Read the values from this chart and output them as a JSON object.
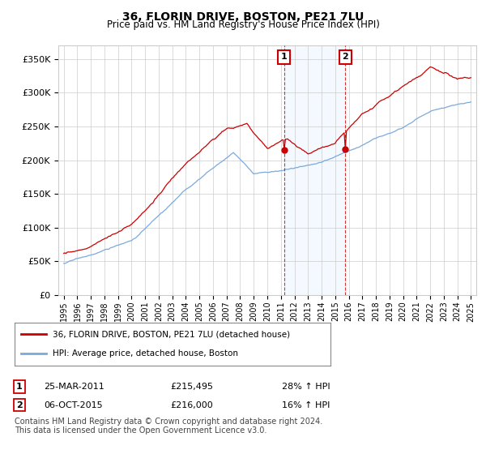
{
  "title": "36, FLORIN DRIVE, BOSTON, PE21 7LU",
  "subtitle": "Price paid vs. HM Land Registry's House Price Index (HPI)",
  "legend_label1": "36, FLORIN DRIVE, BOSTON, PE21 7LU (detached house)",
  "legend_label2": "HPI: Average price, detached house, Boston",
  "annotation1_date": "25-MAR-2011",
  "annotation1_price": "£215,495",
  "annotation1_hpi": "28% ↑ HPI",
  "annotation1_year": 2011.23,
  "annotation1_value": 215495,
  "annotation2_date": "06-OCT-2015",
  "annotation2_price": "£216,000",
  "annotation2_hpi": "16% ↑ HPI",
  "annotation2_year": 2015.75,
  "annotation2_value": 216000,
  "footer1": "Contains HM Land Registry data © Crown copyright and database right 2024.",
  "footer2": "This data is licensed under the Open Government Licence v3.0.",
  "ylim": [
    0,
    370000
  ],
  "yticks": [
    0,
    50000,
    100000,
    150000,
    200000,
    250000,
    300000,
    350000
  ],
  "xlim_start": 1994.6,
  "xlim_end": 2025.4,
  "color_red": "#cc0000",
  "color_blue": "#7aaadd",
  "color_shading": "#ddeeff",
  "background_color": "#ffffff",
  "grid_color": "#cccccc"
}
